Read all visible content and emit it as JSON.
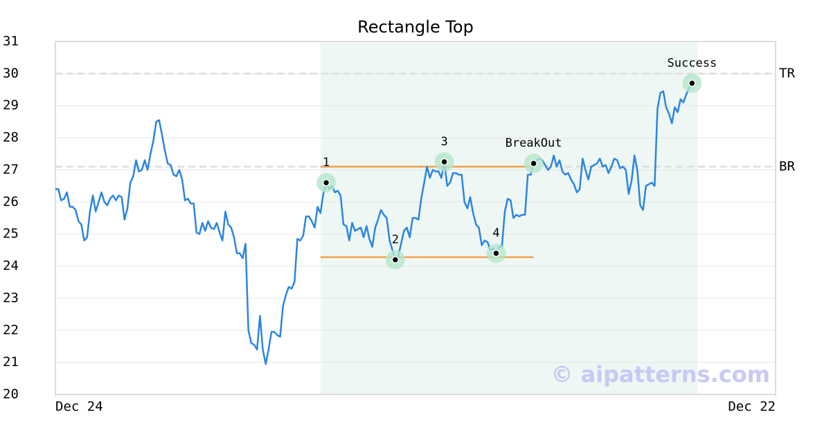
{
  "chart_data": {
    "type": "line",
    "title": "Rectangle Top",
    "color": "#2a85e0",
    "values": [
      26.4,
      26.4,
      26.05,
      26.1,
      26.3,
      25.85,
      25.85,
      25.75,
      25.4,
      25.3,
      24.8,
      24.9,
      25.7,
      26.2,
      25.7,
      26.0,
      26.3,
      26.0,
      25.9,
      26.1,
      26.2,
      26.05,
      26.2,
      26.15,
      25.45,
      25.8,
      26.6,
      26.8,
      27.3,
      26.95,
      27.0,
      27.3,
      27.0,
      27.5,
      27.9,
      28.5,
      28.55,
      28.1,
      27.6,
      27.2,
      27.15,
      26.85,
      26.8,
      27.0,
      26.7,
      26.05,
      26.1,
      25.95,
      25.95,
      25.05,
      25.0,
      25.35,
      25.1,
      25.4,
      25.2,
      25.15,
      25.35,
      25.05,
      24.8,
      25.7,
      25.3,
      25.2,
      24.9,
      24.4,
      24.4,
      24.25,
      24.7,
      22.0,
      21.6,
      21.55,
      21.4,
      22.45,
      21.4,
      20.95,
      21.4,
      21.95,
      21.95,
      21.85,
      21.8,
      22.75,
      23.1,
      23.35,
      23.3,
      23.5,
      24.85,
      24.8,
      24.95,
      25.55,
      25.55,
      25.4,
      25.2,
      25.85,
      25.65,
      26.25,
      26.6,
      26.4,
      26.5,
      26.3,
      26.35,
      26.2,
      25.3,
      25.25,
      24.8,
      25.35,
      25.1,
      25.15,
      25.2,
      24.9,
      25.25,
      24.85,
      24.6,
      25.2,
      25.45,
      25.75,
      25.6,
      25.5,
      24.8,
      24.5,
      24.2,
      24.3,
      24.7,
      25.1,
      25.2,
      24.9,
      25.5,
      25.5,
      25.45,
      26.1,
      26.6,
      27.1,
      26.75,
      27.0,
      26.95,
      26.95,
      26.75,
      27.25,
      26.5,
      26.6,
      26.9,
      26.9,
      26.85,
      26.85,
      26.0,
      25.8,
      26.15,
      25.65,
      25.3,
      25.2,
      24.65,
      24.8,
      24.75,
      24.5,
      24.55,
      24.4,
      24.6,
      24.6,
      25.7,
      26.1,
      26.05,
      25.5,
      25.6,
      25.55,
      25.6,
      25.6,
      26.85,
      26.85,
      27.2,
      27.3,
      27.35,
      27.3,
      27.15,
      27.0,
      27.1,
      27.45,
      27.1,
      27.3,
      26.95,
      26.85,
      26.9,
      26.7,
      26.55,
      26.3,
      26.4,
      27.35,
      27.0,
      26.7,
      27.1,
      27.15,
      27.2,
      27.35,
      27.1,
      27.15,
      26.9,
      27.1,
      27.35,
      27.3,
      27.05,
      27.1,
      27.0,
      26.25,
      26.65,
      27.45,
      27.0,
      25.9,
      25.75,
      26.5,
      26.55,
      26.6,
      26.5,
      28.9,
      29.4,
      29.45,
      28.95,
      28.75,
      28.45,
      28.95,
      28.8,
      29.2,
      29.1,
      29.35,
      29.55,
      29.7
    ],
    "xlim": [
      0,
      250
    ],
    "xticks": [
      {
        "value": 0,
        "label": "Dec 24"
      },
      {
        "value": 250,
        "label": "Dec 22"
      }
    ],
    "ylim": [
      20,
      31
    ],
    "yticks": [
      20,
      21,
      22,
      23,
      24,
      25,
      26,
      27,
      28,
      29,
      30,
      31
    ],
    "grid": true,
    "shaded_region": {
      "x": [
        92,
        223
      ],
      "color": "#eef7f3"
    },
    "levels": [
      {
        "label": "TR",
        "value": 30
      },
      {
        "label": "BR",
        "value": 27.1
      }
    ],
    "pattern_lines": [
      {
        "x": [
          92,
          166
        ],
        "y": 27.1,
        "color": "#f5a04a"
      },
      {
        "x": [
          92,
          166
        ],
        "y": 24.28,
        "color": "#f5a04a"
      }
    ],
    "points": [
      {
        "label": "1",
        "x": 94,
        "y": 26.6
      },
      {
        "label": "2",
        "x": 118,
        "y": 24.2
      },
      {
        "label": "3",
        "x": 135,
        "y": 27.25
      },
      {
        "label": "4",
        "x": 153,
        "y": 24.4
      },
      {
        "label": "BreakOut",
        "x": 166,
        "y": 27.2
      },
      {
        "label": "Success",
        "x": 221,
        "y": 29.7
      }
    ],
    "watermark": "© aipatterns.com"
  }
}
